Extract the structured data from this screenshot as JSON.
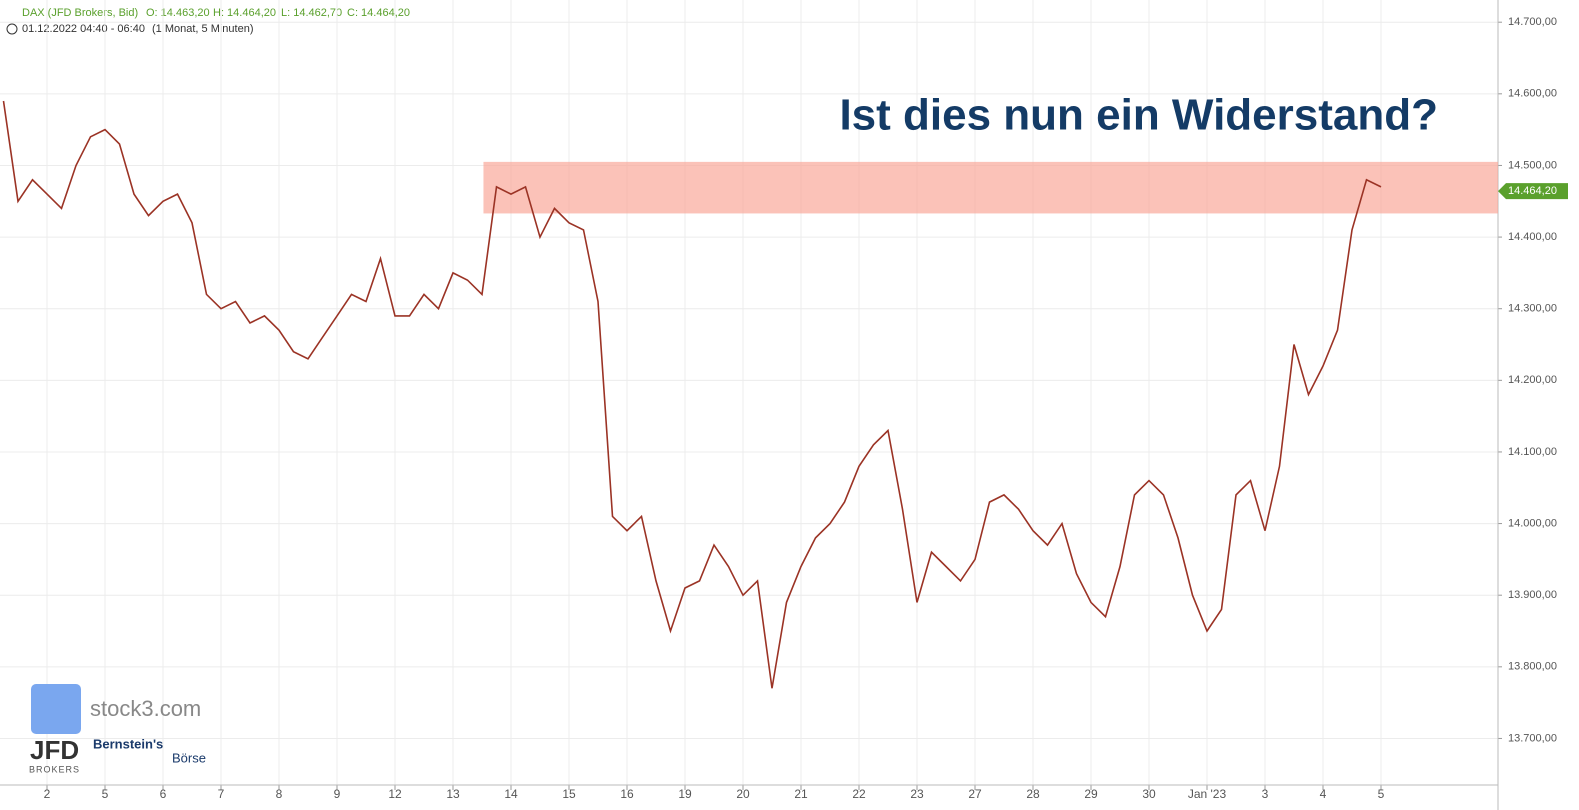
{
  "chart_data": {
    "type": "line",
    "instrument": "DAX (JFD Brokers, Bid)",
    "ohlc_text": [
      "O: 14.463,20",
      "H: 14.464,20",
      "L: 14.462,70",
      "C: 14.464,20"
    ],
    "subtitle": "01.12.2022 04:40 - 06:40",
    "interval": "(1 Monat, 5 Minuten)",
    "annotation": "Ist dies nun ein Widerstand?",
    "zone": {
      "from": 14433,
      "to": 14505,
      "color": "#f9a89a"
    },
    "last_price": {
      "value": 14464.2,
      "label": "14.464,20"
    },
    "categories": [
      null,
      null,
      null,
      "2",
      null,
      null,
      null,
      "5",
      null,
      null,
      null,
      "6",
      null,
      null,
      null,
      "7",
      null,
      null,
      null,
      "8",
      null,
      null,
      null,
      "9",
      null,
      null,
      null,
      "12",
      null,
      null,
      null,
      "13",
      null,
      null,
      null,
      "14",
      null,
      null,
      null,
      "15",
      null,
      null,
      null,
      "16",
      null,
      null,
      null,
      "19",
      null,
      null,
      null,
      "20",
      null,
      null,
      null,
      "21",
      null,
      null,
      null,
      "22",
      null,
      null,
      null,
      "23",
      null,
      null,
      null,
      "27",
      null,
      null,
      null,
      "28",
      null,
      null,
      null,
      "29",
      null,
      null,
      null,
      "30",
      null,
      null,
      null,
      "Jan '23",
      null,
      null,
      null,
      "3",
      null,
      null,
      null,
      "4",
      null,
      null,
      null,
      "5"
    ],
    "series": [
      {
        "name": "DAX",
        "color": "#9b3325",
        "values": [
          14590,
          14450,
          14480,
          14460,
          14440,
          14500,
          14540,
          14550,
          14530,
          14460,
          14430,
          14450,
          14460,
          14420,
          14320,
          14300,
          14310,
          14280,
          14290,
          14270,
          14240,
          14230,
          14260,
          14290,
          14320,
          14310,
          14370,
          14290,
          14290,
          14320,
          14300,
          14350,
          14340,
          14320,
          14470,
          14460,
          14470,
          14400,
          14440,
          14420,
          14410,
          14310,
          14010,
          13990,
          14010,
          13920,
          13850,
          13910,
          13920,
          13970,
          13940,
          13900,
          13920,
          13770,
          13890,
          13940,
          13980,
          14000,
          14030,
          14080,
          14110,
          14130,
          14020,
          13890,
          13960,
          13940,
          13920,
          13950,
          14030,
          14040,
          14020,
          13990,
          13970,
          14000,
          13930,
          13890,
          13870,
          13940,
          14040,
          14060,
          14040,
          13980,
          13900,
          13850,
          13880,
          14040,
          14060,
          13990,
          14080,
          14250,
          14180,
          14220,
          14270,
          14410,
          14480,
          14470
        ]
      }
    ],
    "ylim": [
      13635,
      14731
    ],
    "yticks": [
      {
        "value": 13700,
        "label": "13.700,00"
      },
      {
        "value": 13800,
        "label": "13.800,00"
      },
      {
        "value": 13900,
        "label": "13.900,00"
      },
      {
        "value": 14000,
        "label": "14.000,00"
      },
      {
        "value": 14100,
        "label": "14.100,00"
      },
      {
        "value": 14200,
        "label": "14.200,00"
      },
      {
        "value": 14300,
        "label": "14.300,00"
      },
      {
        "value": 14400,
        "label": "14.400,00"
      },
      {
        "value": 14500,
        "label": "14.500,00"
      },
      {
        "value": 14600,
        "label": "14.600,00"
      },
      {
        "value": 14700,
        "label": "14.700,00"
      }
    ],
    "grid": true,
    "logos": [
      "stock3.com",
      "JFD",
      "BROKERS",
      "Bernstein's",
      "Börse"
    ]
  }
}
